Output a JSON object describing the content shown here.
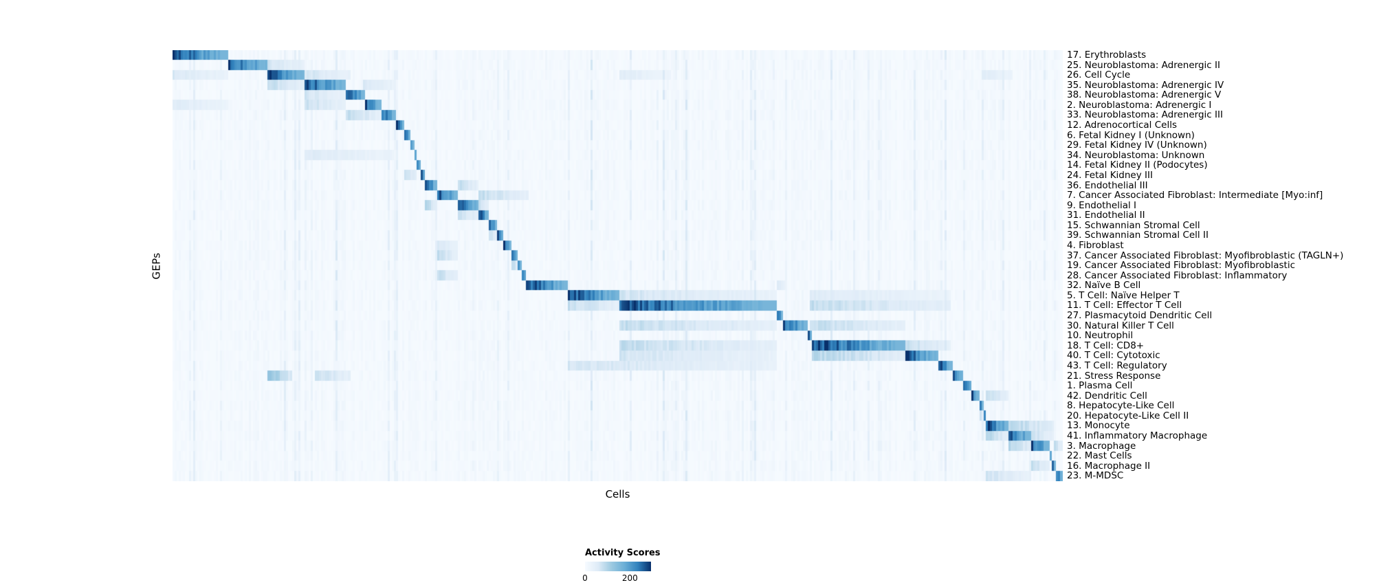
{
  "chart_data": {
    "type": "heatmap",
    "title": "",
    "xlabel": "Cells",
    "ylabel": "GEPs",
    "x_axis": "individual cells (columns, unlabeled)",
    "n_rows": 43,
    "colormap": {
      "name": "Blues",
      "stops": [
        "#f7fbff",
        "#deebf7",
        "#9ecae1",
        "#6baed6",
        "#3182bd",
        "#08306b"
      ]
    },
    "colorbar": {
      "title": "Activity Scores",
      "min": 0,
      "max": 200,
      "min_label": "0",
      "max_label": "200"
    },
    "rows": [
      {
        "label": "17. Erythroblasts",
        "blocks": [
          [
            0.0,
            0.062,
            1.0
          ]
        ]
      },
      {
        "label": "25. Neuroblastoma: Adrenergic II",
        "blocks": [
          [
            0.062,
            0.108,
            1.0
          ],
          [
            0.108,
            0.15,
            0.25
          ]
        ]
      },
      {
        "label": "26. Cell Cycle",
        "blocks": [
          [
            0.108,
            0.148,
            1.0
          ],
          [
            0.0,
            0.062,
            0.22
          ],
          [
            0.148,
            0.2,
            0.25
          ],
          [
            0.503,
            0.56,
            0.18
          ],
          [
            0.91,
            0.945,
            0.18
          ]
        ]
      },
      {
        "label": "35. Neuroblastoma: Adrenergic IV",
        "blocks": [
          [
            0.148,
            0.196,
            1.0
          ],
          [
            0.108,
            0.148,
            0.3
          ],
          [
            0.215,
            0.252,
            0.22
          ]
        ]
      },
      {
        "label": "38. Neuroblastoma: Adrenergic V",
        "blocks": [
          [
            0.196,
            0.216,
            1.0
          ],
          [
            0.148,
            0.196,
            0.25
          ]
        ]
      },
      {
        "label": "2. Neuroblastoma: Adrenergic I",
        "blocks": [
          [
            0.216,
            0.234,
            1.0
          ],
          [
            0.0,
            0.062,
            0.2
          ],
          [
            0.148,
            0.196,
            0.28
          ]
        ]
      },
      {
        "label": "33. Neuroblastoma: Adrenergic III",
        "blocks": [
          [
            0.234,
            0.252,
            1.0
          ],
          [
            0.196,
            0.234,
            0.3
          ]
        ]
      },
      {
        "label": "12. Adrenocortical Cells",
        "blocks": [
          [
            0.252,
            0.261,
            1.0
          ]
        ]
      },
      {
        "label": "6. Fetal Kidney I (Unknown)",
        "blocks": [
          [
            0.261,
            0.267,
            1.0
          ]
        ]
      },
      {
        "label": "29. Fetal Kidney IV (Unknown)",
        "blocks": [
          [
            0.267,
            0.271,
            1.0
          ]
        ]
      },
      {
        "label": "34. Neuroblastoma: Unknown",
        "blocks": [
          [
            0.271,
            0.275,
            1.0
          ],
          [
            0.148,
            0.25,
            0.2
          ]
        ]
      },
      {
        "label": "14. Fetal Kidney II (Podocytes)",
        "blocks": [
          [
            0.275,
            0.279,
            1.0
          ]
        ]
      },
      {
        "label": "24. Fetal Kidney III",
        "blocks": [
          [
            0.279,
            0.284,
            1.0
          ],
          [
            0.261,
            0.275,
            0.3
          ]
        ]
      },
      {
        "label": "36. Endothelial III",
        "blocks": [
          [
            0.284,
            0.297,
            1.0
          ],
          [
            0.32,
            0.345,
            0.3
          ]
        ]
      },
      {
        "label": "7. Cancer Associated Fibroblast: Intermediate [Myo:inf]",
        "blocks": [
          [
            0.297,
            0.32,
            1.0
          ],
          [
            0.345,
            0.4,
            0.3
          ]
        ]
      },
      {
        "label": "9. Endothelial I",
        "blocks": [
          [
            0.32,
            0.344,
            1.0
          ],
          [
            0.284,
            0.297,
            0.35
          ],
          [
            0.344,
            0.356,
            0.3
          ]
        ]
      },
      {
        "label": "31. Endothelial II",
        "blocks": [
          [
            0.344,
            0.356,
            1.0
          ],
          [
            0.32,
            0.344,
            0.3
          ]
        ]
      },
      {
        "label": "15. Schwannian Stromal Cell",
        "blocks": [
          [
            0.356,
            0.366,
            1.0
          ]
        ]
      },
      {
        "label": "39. Schwannian Stromal Cell II",
        "blocks": [
          [
            0.366,
            0.373,
            1.0
          ],
          [
            0.356,
            0.366,
            0.3
          ]
        ]
      },
      {
        "label": "4. Fibroblast",
        "blocks": [
          [
            0.373,
            0.381,
            1.0
          ],
          [
            0.297,
            0.32,
            0.25
          ]
        ]
      },
      {
        "label": "37. Cancer Associated Fibroblast: Myofibroblastic (TAGLN+)",
        "blocks": [
          [
            0.381,
            0.388,
            1.0
          ],
          [
            0.297,
            0.32,
            0.3
          ]
        ]
      },
      {
        "label": "19. Cancer Associated Fibroblast: Myofibroblastic",
        "blocks": [
          [
            0.388,
            0.393,
            1.0
          ],
          [
            0.381,
            0.388,
            0.35
          ]
        ]
      },
      {
        "label": "28. Cancer Associated Fibroblast: Inflammatory",
        "blocks": [
          [
            0.393,
            0.398,
            1.0
          ],
          [
            0.297,
            0.32,
            0.3
          ]
        ]
      },
      {
        "label": "32. Naïve B Cell",
        "blocks": [
          [
            0.398,
            0.444,
            1.0
          ],
          [
            0.68,
            0.69,
            0.2
          ]
        ]
      },
      {
        "label": "5. T Cell: Naïve Helper T",
        "blocks": [
          [
            0.444,
            0.503,
            1.0
          ],
          [
            0.503,
            0.68,
            0.25
          ],
          [
            0.717,
            0.875,
            0.2
          ]
        ]
      },
      {
        "label": "11. T Cell: Effector T Cell",
        "blocks": [
          [
            0.503,
            0.68,
            1.0
          ],
          [
            0.444,
            0.503,
            0.3
          ],
          [
            0.717,
            0.875,
            0.3
          ]
        ]
      },
      {
        "label": "27. Plasmacytoid Dendritic Cell",
        "blocks": [
          [
            0.68,
            0.686,
            1.0
          ]
        ]
      },
      {
        "label": "30. Natural Killer T Cell",
        "blocks": [
          [
            0.686,
            0.714,
            1.0
          ],
          [
            0.503,
            0.68,
            0.3
          ],
          [
            0.717,
            0.824,
            0.3
          ]
        ]
      },
      {
        "label": "10. Neutrophil",
        "blocks": [
          [
            0.714,
            0.718,
            1.0
          ]
        ]
      },
      {
        "label": "18. T Cell: CD8+",
        "blocks": [
          [
            0.718,
            0.824,
            1.0
          ],
          [
            0.503,
            0.68,
            0.3
          ],
          [
            0.824,
            0.875,
            0.3
          ]
        ]
      },
      {
        "label": "40. T Cell: Cytotoxic",
        "blocks": [
          [
            0.824,
            0.86,
            1.0
          ],
          [
            0.503,
            0.68,
            0.25
          ],
          [
            0.718,
            0.824,
            0.35
          ]
        ]
      },
      {
        "label": "43. T Cell: Regulatory",
        "blocks": [
          [
            0.86,
            0.876,
            1.0
          ],
          [
            0.444,
            0.68,
            0.25
          ]
        ]
      },
      {
        "label": "21. Stress Response",
        "blocks": [
          [
            0.876,
            0.888,
            1.0
          ],
          [
            0.108,
            0.135,
            0.45
          ],
          [
            0.16,
            0.2,
            0.3
          ]
        ]
      },
      {
        "label": "1. Plasma Cell",
        "blocks": [
          [
            0.888,
            0.898,
            1.0
          ]
        ]
      },
      {
        "label": "42. Dendritic Cell",
        "blocks": [
          [
            0.898,
            0.906,
            1.0
          ],
          [
            0.915,
            0.94,
            0.3
          ]
        ]
      },
      {
        "label": "8. Hepatocyte-Like Cell",
        "blocks": [
          [
            0.906,
            0.911,
            1.0
          ]
        ]
      },
      {
        "label": "20. Hepatocyte-Like Cell II",
        "blocks": [
          [
            0.911,
            0.915,
            1.0
          ],
          [
            0.906,
            0.911,
            0.35
          ]
        ]
      },
      {
        "label": "13. Monocyte",
        "blocks": [
          [
            0.915,
            0.939,
            1.0
          ],
          [
            0.939,
            0.99,
            0.35
          ]
        ]
      },
      {
        "label": "41. Inflammatory Macrophage",
        "blocks": [
          [
            0.939,
            0.964,
            1.0
          ],
          [
            0.915,
            0.939,
            0.35
          ],
          [
            0.964,
            0.99,
            0.3
          ]
        ]
      },
      {
        "label": "3. Macrophage",
        "blocks": [
          [
            0.964,
            0.985,
            1.0
          ],
          [
            0.939,
            0.964,
            0.35
          ],
          [
            0.99,
            1.0,
            0.3
          ]
        ]
      },
      {
        "label": "22. Mast Cells",
        "blocks": [
          [
            0.985,
            0.989,
            1.0
          ]
        ]
      },
      {
        "label": "16. Macrophage II",
        "blocks": [
          [
            0.989,
            0.993,
            1.0
          ],
          [
            0.964,
            0.985,
            0.3
          ]
        ]
      },
      {
        "label": "23. M-MDSC",
        "blocks": [
          [
            0.993,
            1.0,
            1.0
          ],
          [
            0.915,
            0.964,
            0.25
          ]
        ]
      }
    ]
  }
}
